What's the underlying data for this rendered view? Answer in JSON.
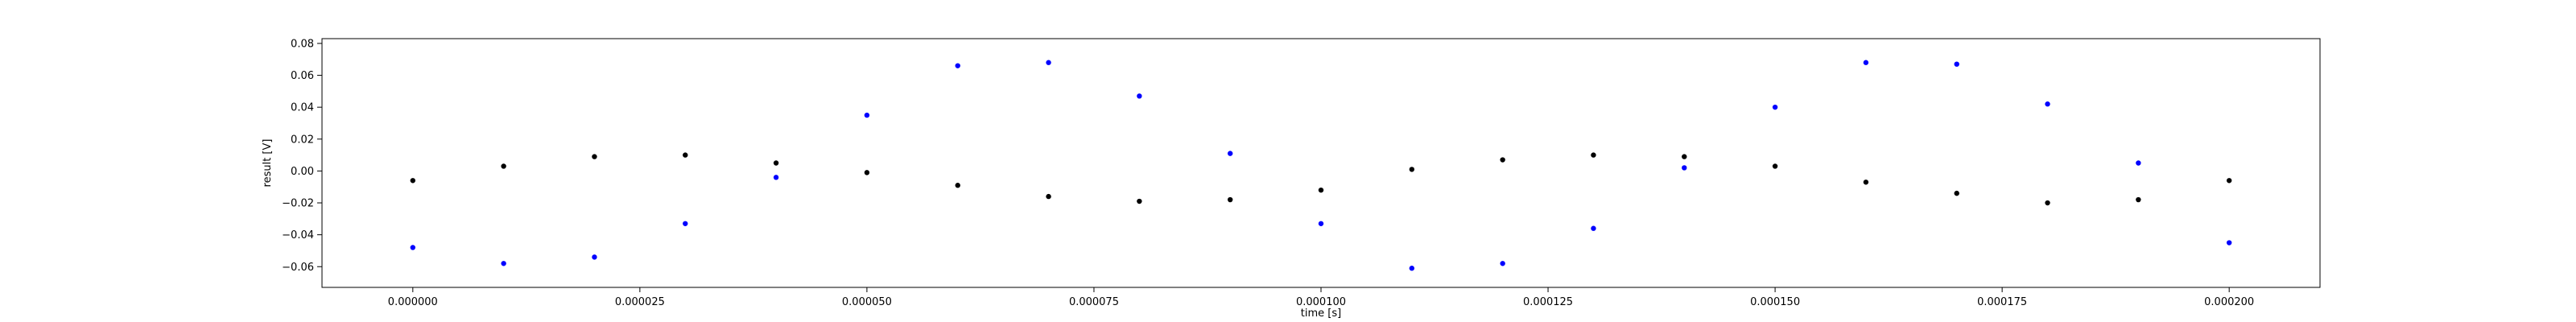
{
  "chart_data": {
    "type": "scatter",
    "xlabel": "time [s]",
    "ylabel": "result [V]",
    "xlim": [
      -1e-05,
      0.00021
    ],
    "ylim": [
      -0.073,
      0.083
    ],
    "x_ticks": [
      0.0,
      2.5e-05,
      5e-05,
      7.5e-05,
      0.0001,
      0.000125,
      0.00015,
      0.000175,
      0.0002
    ],
    "x_tick_labels": [
      "0.000000",
      "0.000025",
      "0.000050",
      "0.000075",
      "0.000100",
      "0.000125",
      "0.000150",
      "0.000175",
      "0.000200"
    ],
    "y_ticks": [
      -0.06,
      -0.04,
      -0.02,
      0.0,
      0.02,
      0.04,
      0.06,
      0.08
    ],
    "y_tick_labels": [
      "−0.06",
      "−0.04",
      "−0.02",
      "0.00",
      "0.02",
      "0.04",
      "0.06",
      "0.08"
    ],
    "grid": false,
    "legend": "none",
    "series": [
      {
        "color": "#0000ff",
        "x": [
          0.0,
          1e-05,
          2e-05,
          3e-05,
          4e-05,
          5e-05,
          6e-05,
          7e-05,
          8e-05,
          9e-05,
          0.0001,
          0.00011,
          0.00012,
          0.00013,
          0.00014,
          0.00015,
          0.00016,
          0.00017,
          0.00018,
          0.00019,
          0.0002
        ],
        "y": [
          -0.048,
          -0.058,
          -0.054,
          -0.033,
          -0.004,
          0.035,
          0.066,
          0.068,
          0.047,
          0.011,
          -0.033,
          -0.061,
          -0.058,
          -0.036,
          0.002,
          0.04,
          0.068,
          0.067,
          0.042,
          0.005,
          -0.045
        ]
      },
      {
        "color": "#000000",
        "x": [
          0.0,
          1e-05,
          2e-05,
          3e-05,
          4e-05,
          5e-05,
          6e-05,
          7e-05,
          8e-05,
          9e-05,
          0.0001,
          0.00011,
          0.00012,
          0.00013,
          0.00014,
          0.00015,
          0.00016,
          0.00017,
          0.00018,
          0.00019,
          0.0002
        ],
        "y": [
          -0.006,
          0.003,
          0.009,
          0.01,
          0.005,
          -0.001,
          -0.009,
          -0.016,
          -0.019,
          -0.018,
          -0.012,
          0.001,
          0.007,
          0.01,
          0.009,
          0.003,
          -0.007,
          -0.014,
          -0.02,
          -0.018,
          -0.006
        ]
      }
    ]
  }
}
